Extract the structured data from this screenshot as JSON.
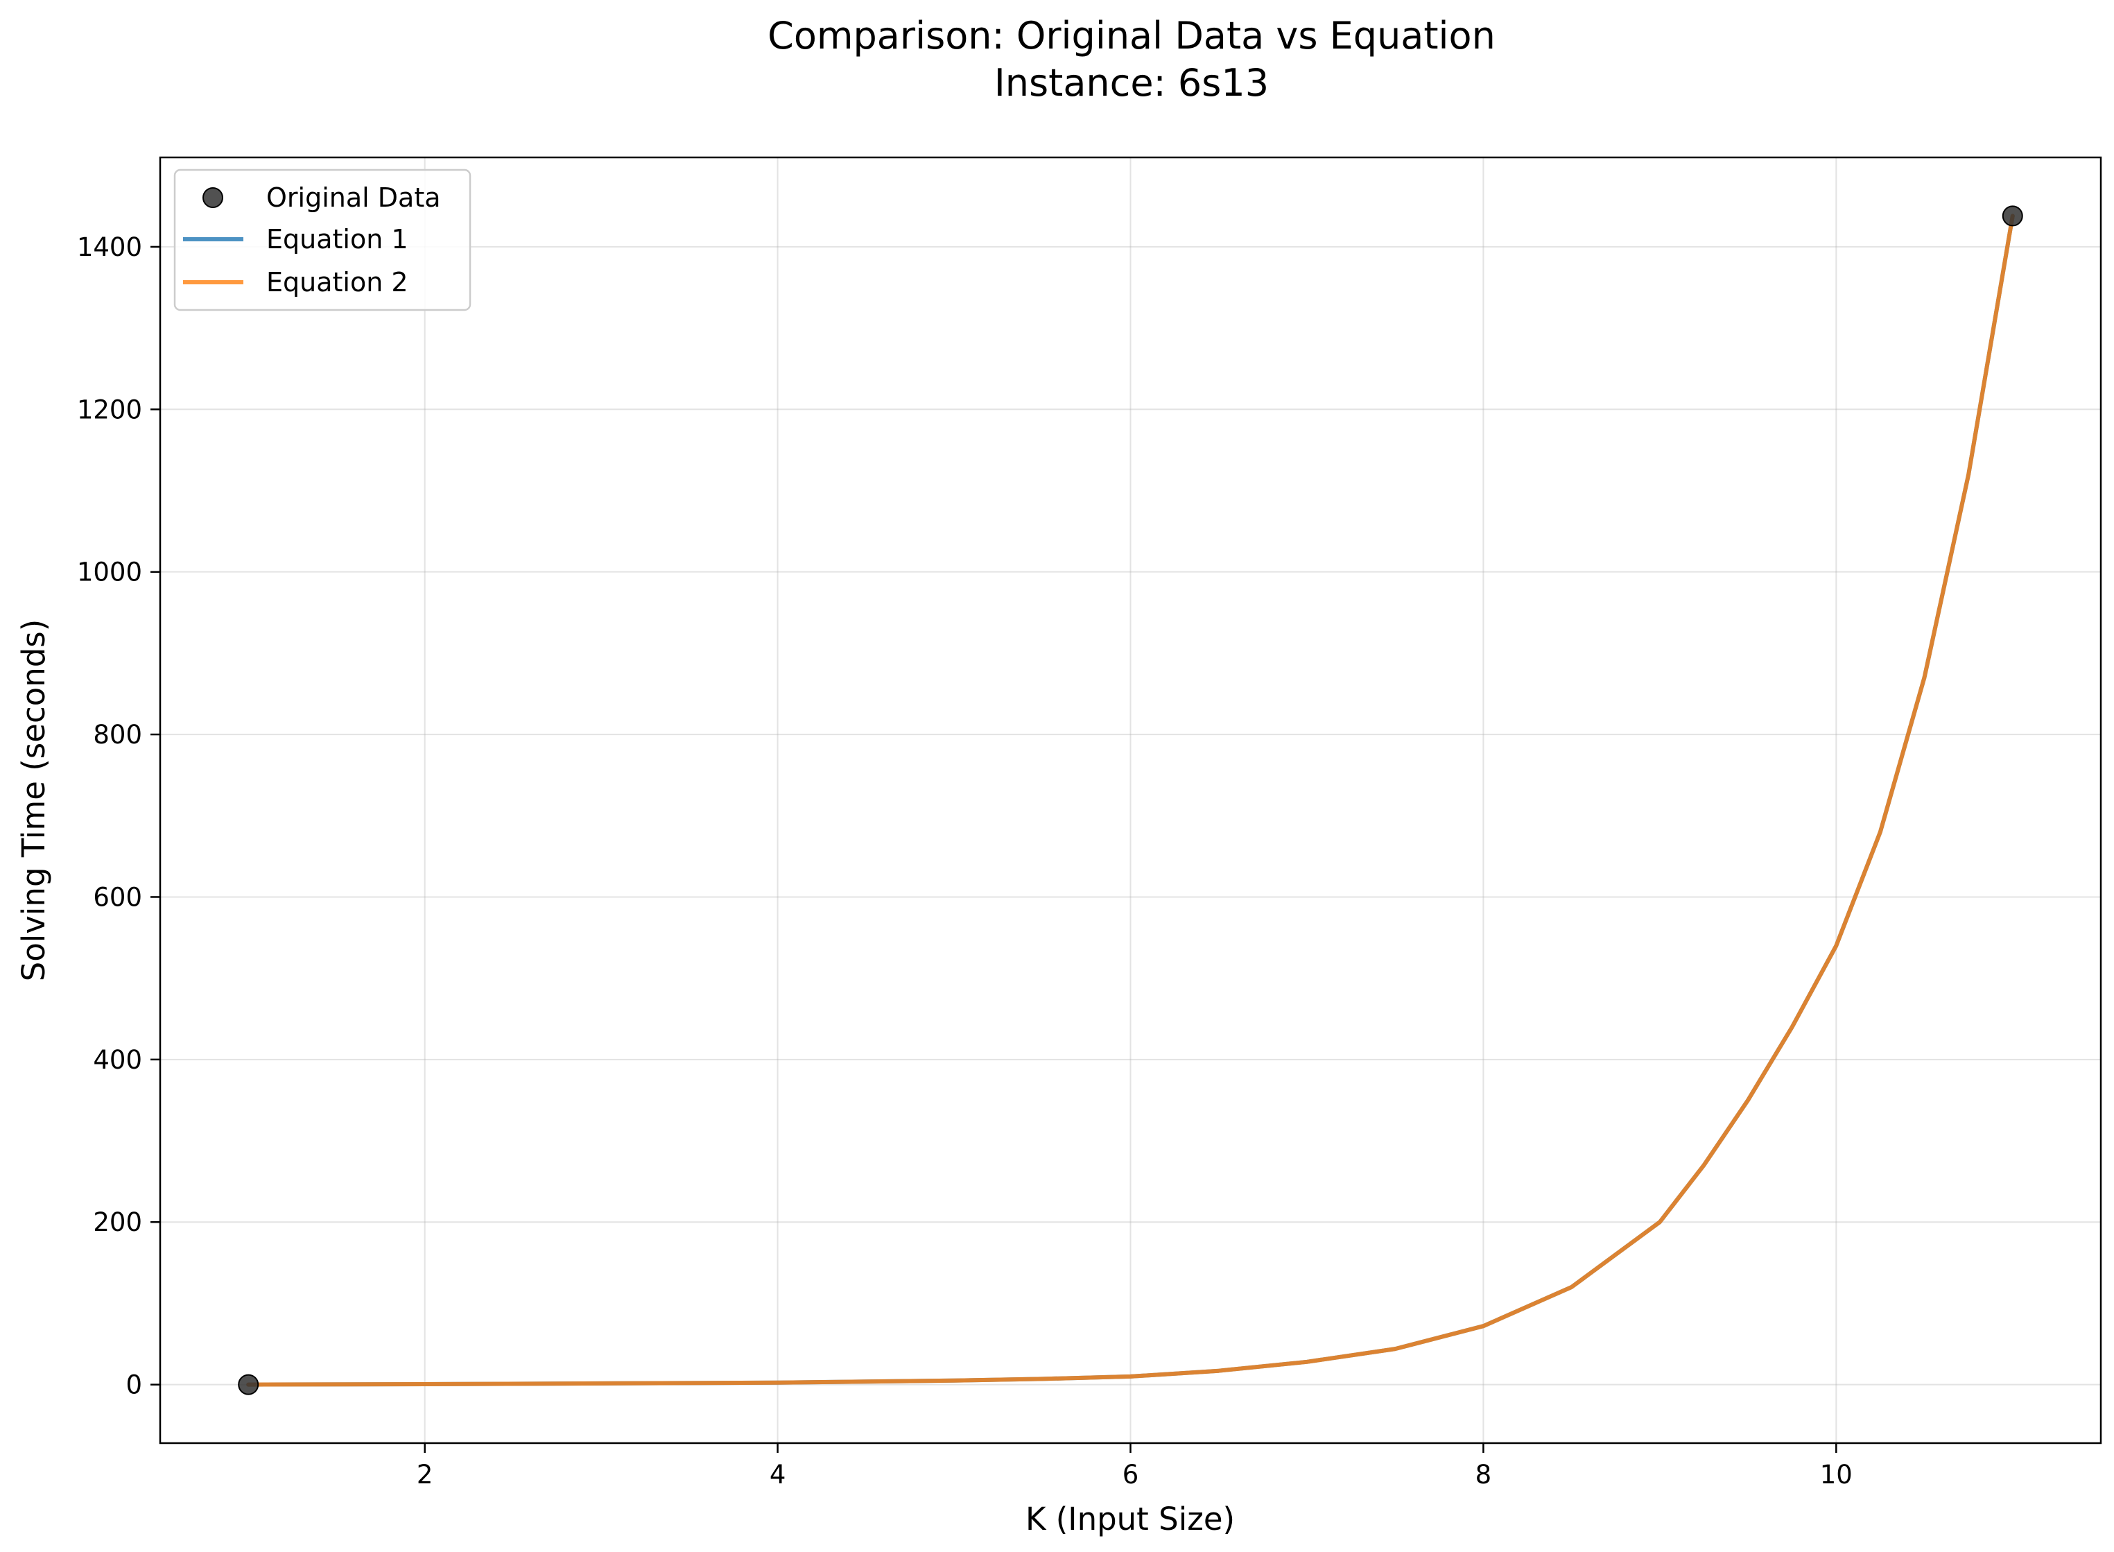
{
  "chart_data": {
    "type": "line",
    "title": "Comparison: Original Data vs Equation",
    "subtitle": "Instance: 6s13",
    "xlabel": "K (Input Size)",
    "ylabel": "Solving Time (seconds)",
    "xlim": [
      0.5,
      11.5
    ],
    "ylim": [
      -72,
      1510
    ],
    "xticks": [
      2,
      4,
      6,
      8,
      10
    ],
    "xtick_labels": [
      "2",
      "4",
      "6",
      "8",
      "10"
    ],
    "yticks": [
      0,
      200,
      400,
      600,
      800,
      1000,
      1200,
      1400
    ],
    "ytick_labels": [
      "0",
      "200",
      "400",
      "600",
      "800",
      "1000",
      "1200",
      "1400"
    ],
    "grid": true,
    "legend_position": "top-left",
    "scatter": {
      "name": "Original Data",
      "color": "#333333",
      "points": [
        {
          "x": 1,
          "y": 0
        },
        {
          "x": 11,
          "y": 1438
        }
      ]
    },
    "series": [
      {
        "name": "Equation 1",
        "color": "#1f77b4",
        "x": [
          1,
          2,
          3,
          4,
          5,
          5.5,
          6,
          6.5,
          7,
          7.5,
          8,
          8.5,
          9,
          9.25,
          9.5,
          9.75,
          10,
          10.25,
          10.5,
          10.75,
          11
        ],
        "y": [
          0,
          0.5,
          1.5,
          2.5,
          5,
          7,
          10,
          17,
          28,
          44,
          72,
          120,
          200,
          270,
          350,
          440,
          540,
          680,
          870,
          1120,
          1438
        ]
      },
      {
        "name": "Equation 2",
        "color": "#ff7f0e",
        "x": [
          1,
          2,
          3,
          4,
          5,
          5.5,
          6,
          6.5,
          7,
          7.5,
          8,
          8.5,
          9,
          9.25,
          9.5,
          9.75,
          10,
          10.25,
          10.5,
          10.75,
          11
        ],
        "y": [
          0,
          0.5,
          1.5,
          2.5,
          5,
          7,
          10,
          17,
          28,
          44,
          72,
          120,
          200,
          270,
          350,
          440,
          540,
          680,
          870,
          1120,
          1438
        ]
      }
    ]
  }
}
